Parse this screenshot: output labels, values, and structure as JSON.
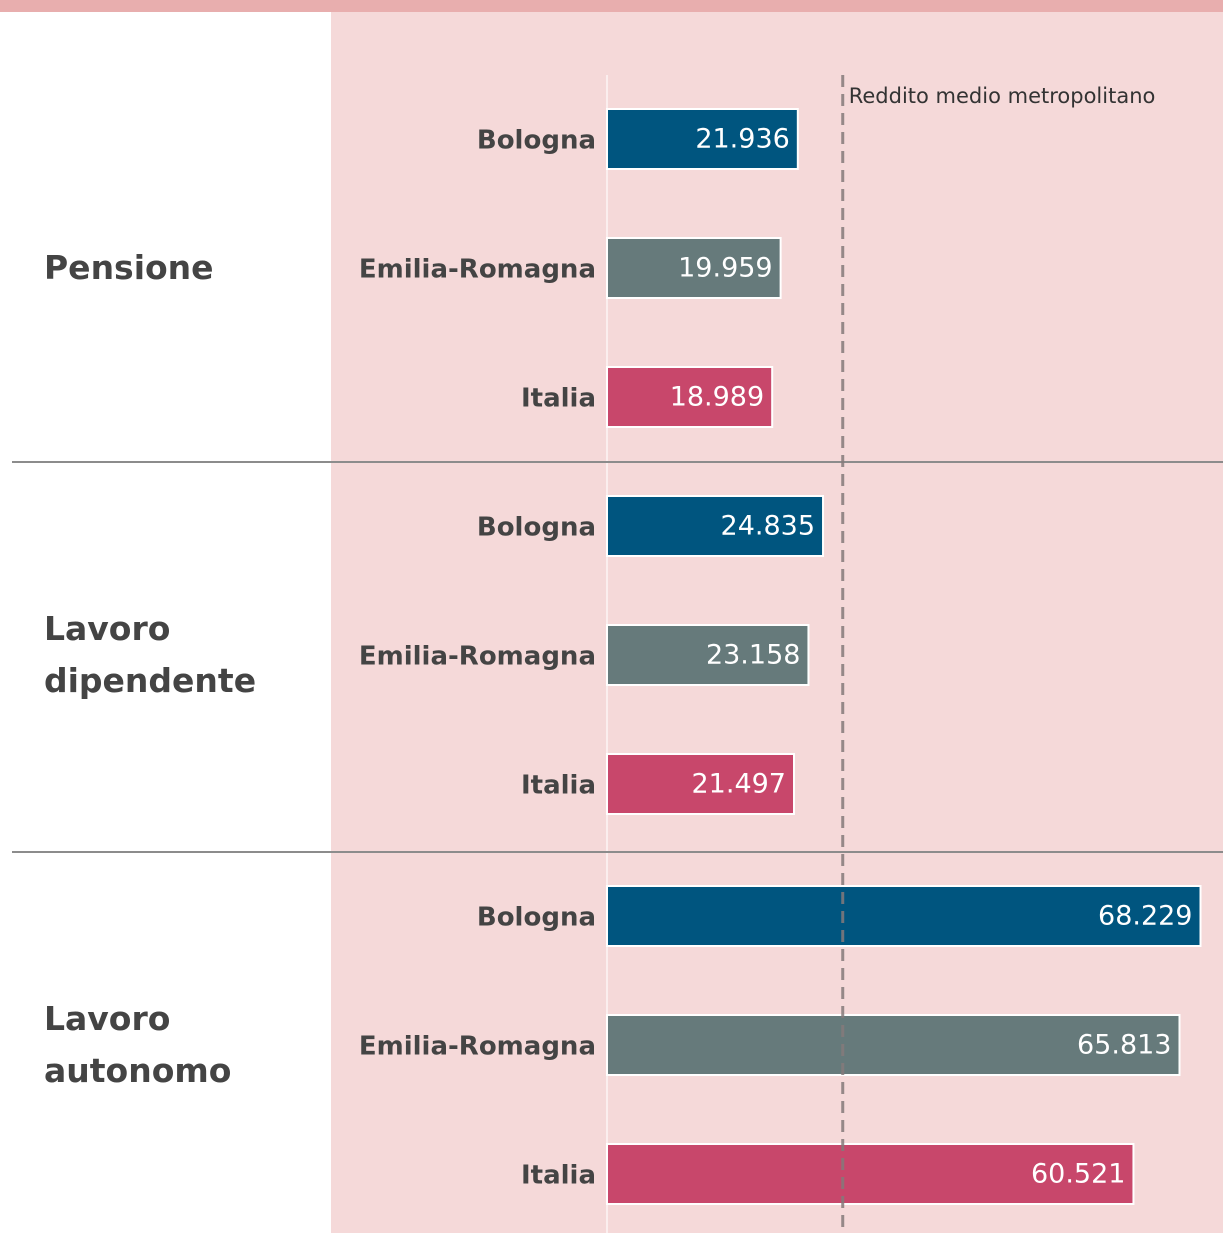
{
  "chart_data": {
    "type": "bar",
    "orientation": "horizontal",
    "groups": [
      "Pensione",
      "Lavoro dipendente",
      "Lavoro autonomo"
    ],
    "series": [
      {
        "name": "Bologna",
        "color": "#00557f",
        "values": [
          21936,
          24835,
          68229
        ],
        "value_labels": [
          "21.936",
          "24.835",
          "68.229"
        ]
      },
      {
        "name": "Emilia-Romagna",
        "color": "#667a7b",
        "values": [
          19959,
          23158,
          65813
        ],
        "value_labels": [
          "19.959",
          "23.158",
          "65.813"
        ]
      },
      {
        "name": "Italia",
        "color": "#c8476b",
        "values": [
          18989,
          21497,
          60521
        ],
        "value_labels": [
          "18.989",
          "21.497",
          "60.521"
        ]
      }
    ],
    "xlim": [
      0,
      70700
    ],
    "reference_line": {
      "value": 27100,
      "label": "Reddito medio metropolitano"
    }
  }
}
